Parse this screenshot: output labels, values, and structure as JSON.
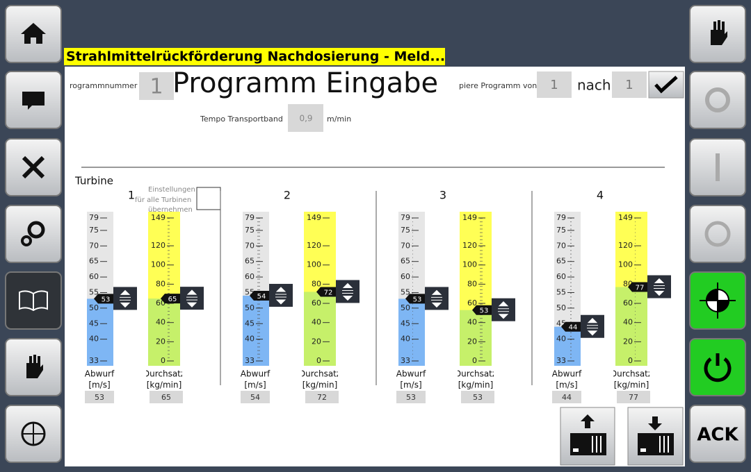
{
  "header": {
    "title": "Strahlmittelrückförderung Nachdosierung - Meld..."
  },
  "program": {
    "number_label": "rogrammnummer",
    "number": "1",
    "title": "Programm Eingabe",
    "copy_label": "piere Programm von",
    "copy_from": "1",
    "copy_to_label": "nach",
    "copy_to": "1"
  },
  "tempo": {
    "label": "Tempo Transportband",
    "value": "0,9",
    "unit": "m/min"
  },
  "turbine_section": {
    "label": "Turbine",
    "apply_all": [
      "Einstellungen",
      "für alle Turbinen",
      "übernehmen"
    ]
  },
  "gauges": {
    "abwurf": {
      "name": "Abwurf",
      "unit": "[m/s]",
      "range": [
        33,
        79
      ],
      "ticks": [
        79,
        75,
        70,
        65,
        60,
        55,
        50,
        45,
        40,
        33
      ]
    },
    "durchsatz": {
      "name": "Durchsatz",
      "unit": "[kg/min]",
      "range": [
        0,
        149
      ],
      "ticks": [
        149,
        120,
        100,
        80,
        60,
        40,
        20,
        0
      ]
    }
  },
  "turbines": [
    {
      "label": "1",
      "abwurf": 53,
      "durchsatz": 65
    },
    {
      "label": "2",
      "abwurf": 54,
      "durchsatz": 72
    },
    {
      "label": "3",
      "abwurf": 53,
      "durchsatz": 53
    },
    {
      "label": "4",
      "abwurf": 44,
      "durchsatz": 77
    }
  ],
  "buttons": {
    "ack": "ACK"
  }
}
